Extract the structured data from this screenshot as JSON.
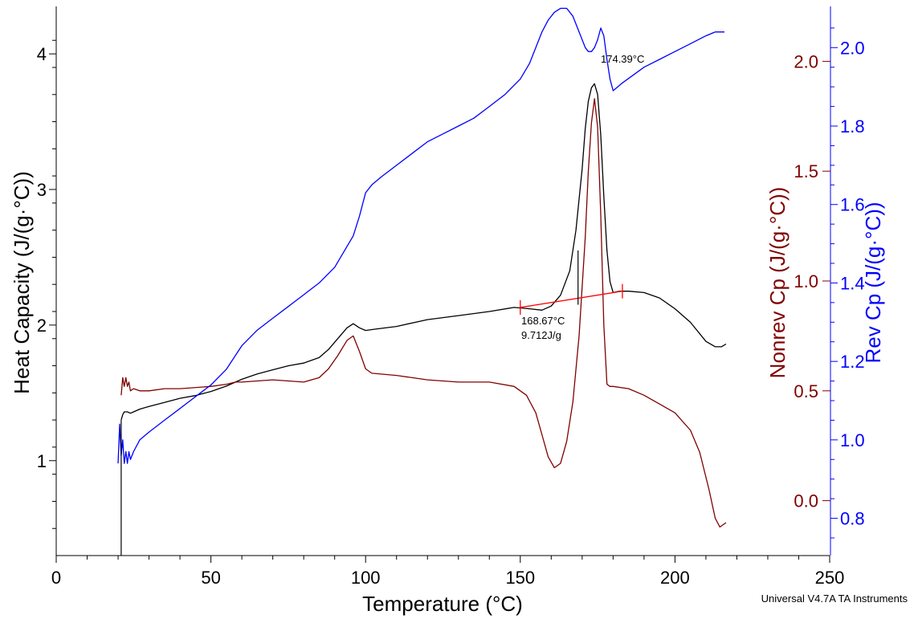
{
  "chart_data": {
    "type": "line",
    "xlabel": "Temperature (°C)",
    "xlim": [
      0,
      250
    ],
    "x_ticks": [
      0,
      50,
      100,
      150,
      200,
      250
    ],
    "x_tick_labels": [
      "0",
      "50",
      "100",
      "150",
      "200",
      "250"
    ],
    "y_axes": {
      "left": {
        "label": "Heat Capacity (J/(g·°C))",
        "color": "#000000",
        "range": [
          0.3,
          4.35
        ],
        "ticks": [
          1,
          2,
          3,
          4
        ],
        "tick_labels": [
          "1",
          "2",
          "3",
          "4"
        ]
      },
      "right_inner": {
        "label": "Nonrev Cp (J/(g·°C))",
        "color": "#800000",
        "range": [
          -0.25,
          2.25
        ],
        "ticks": [
          0.0,
          0.5,
          1.0,
          1.5,
          2.0
        ],
        "tick_labels": [
          "0.0",
          "0.5",
          "1.0",
          "1.5",
          "2.0"
        ]
      },
      "right_outer": {
        "label": "Rev Cp (J/(g·°C))",
        "color": "#0000ff",
        "range": [
          0.705,
          2.105
        ],
        "ticks": [
          0.8,
          1.0,
          1.2,
          1.4,
          1.6,
          1.8,
          2.0
        ],
        "tick_labels": [
          "0.8",
          "1.0",
          "1.2",
          "1.4",
          "1.6",
          "1.8",
          "2.0"
        ]
      }
    },
    "series": [
      {
        "color": "#000000",
        "axis": "left",
        "x": [
          21,
          21.5,
          22,
          23,
          24,
          25,
          27,
          30,
          35,
          40,
          45,
          50,
          55,
          60,
          65,
          70,
          75,
          80,
          85,
          88,
          91,
          94,
          96,
          98,
          100,
          103,
          110,
          120,
          130,
          140,
          148,
          153,
          157,
          160,
          163,
          166,
          168,
          170,
          171,
          172,
          173,
          174,
          175,
          176,
          177,
          178,
          179,
          180,
          182,
          185,
          190,
          195,
          200,
          205,
          210,
          213,
          215,
          216.5
        ],
        "y": [
          1.3,
          1.34,
          1.36,
          1.36,
          1.35,
          1.36,
          1.38,
          1.4,
          1.43,
          1.46,
          1.48,
          1.51,
          1.55,
          1.6,
          1.64,
          1.67,
          1.7,
          1.72,
          1.76,
          1.82,
          1.9,
          1.98,
          2.01,
          1.98,
          1.96,
          1.97,
          1.99,
          2.04,
          2.07,
          2.1,
          2.13,
          2.12,
          2.11,
          2.14,
          2.22,
          2.4,
          2.7,
          3.15,
          3.45,
          3.65,
          3.75,
          3.78,
          3.7,
          3.4,
          2.95,
          2.55,
          2.32,
          2.24,
          2.25,
          2.25,
          2.24,
          2.2,
          2.12,
          2.02,
          1.88,
          1.84,
          1.84,
          1.86
        ]
      },
      {
        "color": "#800000",
        "axis": "right_inner",
        "x": [
          21,
          21.5,
          22,
          22.5,
          23,
          23.5,
          24,
          25,
          27,
          30,
          35,
          40,
          50,
          55,
          58,
          60,
          70,
          80,
          85,
          88,
          91,
          94,
          96,
          98,
          100,
          102,
          110,
          120,
          130,
          140,
          148,
          152,
          155,
          157,
          159,
          161,
          163,
          165,
          167,
          169,
          171,
          172,
          173,
          174,
          175,
          176,
          177,
          178,
          179,
          180,
          185,
          190,
          195,
          200,
          205,
          208,
          211,
          213,
          214.5,
          216.5
        ],
        "y": [
          0.48,
          0.56,
          0.52,
          0.56,
          0.52,
          0.54,
          0.5,
          0.51,
          0.5,
          0.5,
          0.51,
          0.51,
          0.52,
          0.53,
          0.54,
          0.54,
          0.55,
          0.54,
          0.56,
          0.6,
          0.66,
          0.73,
          0.75,
          0.68,
          0.6,
          0.58,
          0.57,
          0.55,
          0.54,
          0.54,
          0.52,
          0.48,
          0.4,
          0.3,
          0.2,
          0.15,
          0.17,
          0.27,
          0.45,
          0.75,
          1.2,
          1.5,
          1.72,
          1.83,
          1.7,
          1.3,
          0.8,
          0.53,
          0.52,
          0.52,
          0.51,
          0.48,
          0.44,
          0.4,
          0.32,
          0.22,
          0.05,
          -0.08,
          -0.12,
          -0.1
        ]
      },
      {
        "color": "#0000ff",
        "axis": "right_outer",
        "x": [
          20,
          20.5,
          21,
          21.5,
          22,
          22.5,
          23,
          23.5,
          24,
          25,
          27,
          30,
          35,
          40,
          45,
          50,
          55,
          60,
          65,
          70,
          75,
          80,
          85,
          90,
          93,
          96,
          98,
          100,
          102,
          105,
          110,
          115,
          120,
          125,
          130,
          135,
          140,
          145,
          150,
          153,
          155,
          157,
          159,
          161,
          163,
          165,
          167,
          169,
          171,
          172,
          173,
          174,
          175,
          176,
          177,
          178,
          179,
          180,
          183,
          190,
          195,
          200,
          205,
          210,
          213,
          216
        ],
        "y": [
          0.94,
          1.04,
          0.96,
          1.0,
          0.94,
          0.97,
          0.94,
          0.97,
          0.95,
          0.97,
          1.0,
          1.02,
          1.05,
          1.08,
          1.11,
          1.14,
          1.18,
          1.24,
          1.28,
          1.31,
          1.34,
          1.37,
          1.4,
          1.44,
          1.48,
          1.52,
          1.57,
          1.63,
          1.65,
          1.67,
          1.7,
          1.73,
          1.76,
          1.78,
          1.8,
          1.82,
          1.85,
          1.88,
          1.92,
          1.96,
          2.0,
          2.04,
          2.07,
          2.09,
          2.1,
          2.1,
          2.08,
          2.04,
          2.0,
          1.99,
          1.99,
          2.0,
          2.02,
          2.05,
          2.03,
          1.97,
          1.92,
          1.89,
          1.91,
          1.95,
          1.97,
          1.99,
          2.01,
          2.03,
          2.04,
          2.04
        ]
      }
    ],
    "integration_baseline": {
      "color": "#ff0000",
      "axis": "left",
      "x": [
        150,
        183
      ],
      "y": [
        2.13,
        2.25
      ]
    },
    "annotations": [
      {
        "text": "174.39°C",
        "x": 174.39,
        "y": 3.78,
        "axis": "left"
      },
      {
        "text": "168.67°C",
        "x": 150,
        "y": 1.98,
        "axis": "left"
      },
      {
        "text": "9.712J/g",
        "x": 150,
        "y": 1.89,
        "axis": "left"
      }
    ],
    "footer": "Universal V4.7A TA Instruments",
    "grid": false,
    "legend": "none"
  }
}
